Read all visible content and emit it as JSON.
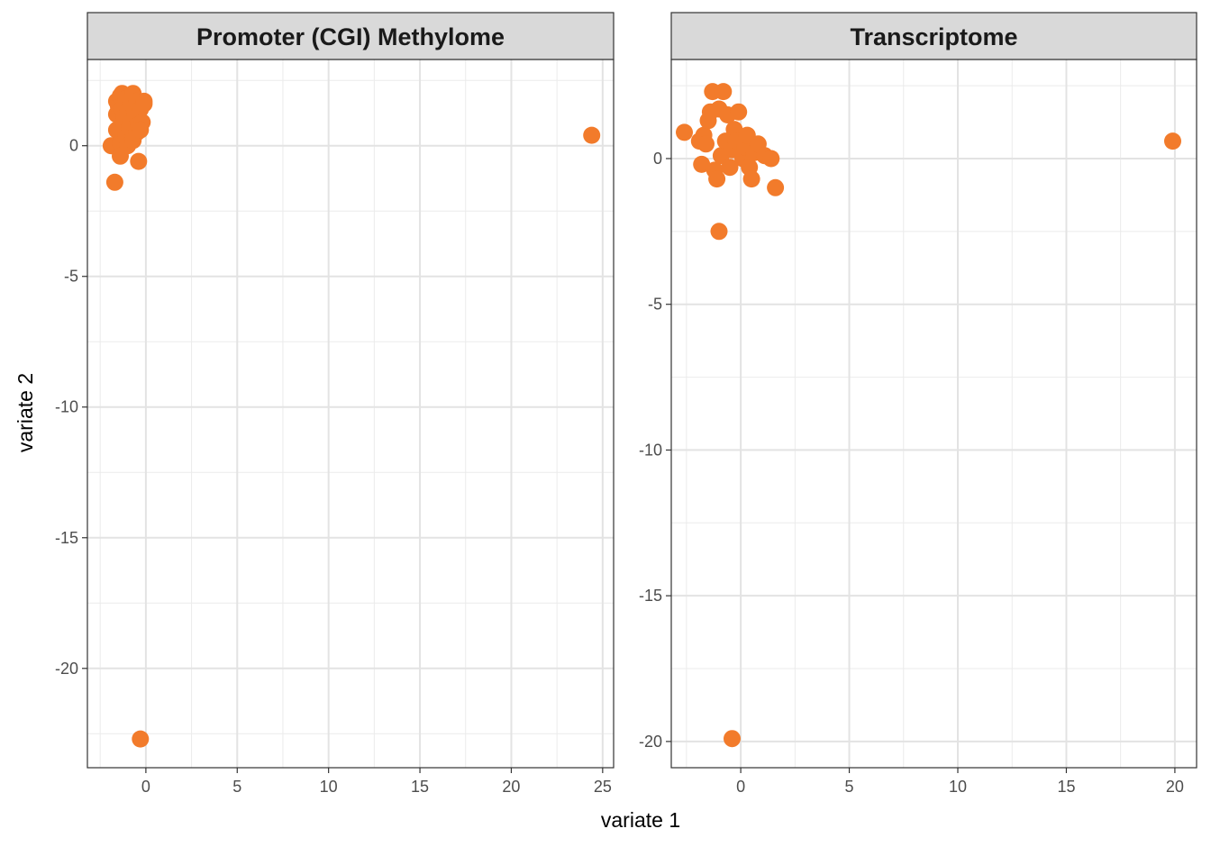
{
  "chart_data": {
    "type": "scatter",
    "xlabel": "variate 1",
    "ylabel": "variate 2",
    "point_color": "#F27B2B",
    "grid": true,
    "legend": "none",
    "panels": [
      {
        "title": "Promoter (CGI) Methylome",
        "xlim": [
          -3.2,
          25.6
        ],
        "ylim": [
          -23.8,
          3.3
        ],
        "xticks": [
          0,
          5,
          10,
          15,
          20,
          25
        ],
        "xtick_labels": [
          "0",
          "5",
          "10",
          "15",
          "20",
          "25"
        ],
        "yticks": [
          0,
          -5,
          -10,
          -15,
          -20
        ],
        "ytick_labels": [
          "0",
          "-5",
          "-10",
          "-15",
          "-20"
        ],
        "points": [
          {
            "x": -1.9,
            "y": 0.0
          },
          {
            "x": -1.7,
            "y": -1.4
          },
          {
            "x": -1.6,
            "y": 0.6
          },
          {
            "x": -1.6,
            "y": 1.2
          },
          {
            "x": -1.6,
            "y": 1.7
          },
          {
            "x": -1.5,
            "y": 1.5
          },
          {
            "x": -1.4,
            "y": 1.9
          },
          {
            "x": -1.4,
            "y": 0.1
          },
          {
            "x": -1.4,
            "y": -0.4
          },
          {
            "x": -1.3,
            "y": 2.0
          },
          {
            "x": -1.3,
            "y": 1.4
          },
          {
            "x": -1.2,
            "y": 0.8
          },
          {
            "x": -1.2,
            "y": 1.1
          },
          {
            "x": -1.1,
            "y": 0.4
          },
          {
            "x": -1.1,
            "y": 1.8
          },
          {
            "x": -1.0,
            "y": 0.0
          },
          {
            "x": -1.0,
            "y": 1.3
          },
          {
            "x": -0.9,
            "y": 0.7
          },
          {
            "x": -0.8,
            "y": 1.6
          },
          {
            "x": -0.8,
            "y": 0.9
          },
          {
            "x": -0.7,
            "y": 2.0
          },
          {
            "x": -0.7,
            "y": 0.2
          },
          {
            "x": -0.6,
            "y": 1.2
          },
          {
            "x": -0.5,
            "y": 1.7
          },
          {
            "x": -0.5,
            "y": 0.5
          },
          {
            "x": -0.4,
            "y": -0.6
          },
          {
            "x": -0.4,
            "y": 0.8
          },
          {
            "x": -0.3,
            "y": 1.4
          },
          {
            "x": -0.2,
            "y": 0.9
          },
          {
            "x": -0.1,
            "y": 1.7
          },
          {
            "x": -0.1,
            "y": 1.6
          },
          {
            "x": -0.3,
            "y": 0.6
          },
          {
            "x": 24.4,
            "y": 0.4
          },
          {
            "x": -0.3,
            "y": -22.7
          }
        ]
      },
      {
        "title": "Transcriptome",
        "xlim": [
          -3.2,
          21.0
        ],
        "ylim": [
          -20.9,
          3.4
        ],
        "xticks": [
          0,
          5,
          10,
          15,
          20
        ],
        "xtick_labels": [
          "0",
          "5",
          "10",
          "15",
          "20"
        ],
        "yticks": [
          0,
          -5,
          -10,
          -15,
          -20
        ],
        "ytick_labels": [
          "0",
          "-5",
          "-10",
          "-15",
          "-20"
        ],
        "points": [
          {
            "x": -2.6,
            "y": 0.9
          },
          {
            "x": -1.9,
            "y": 0.6
          },
          {
            "x": -1.8,
            "y": -0.2
          },
          {
            "x": -1.7,
            "y": 0.8
          },
          {
            "x": -1.6,
            "y": 0.5
          },
          {
            "x": -1.5,
            "y": 1.3
          },
          {
            "x": -1.4,
            "y": 1.6
          },
          {
            "x": -1.3,
            "y": 2.3
          },
          {
            "x": -1.2,
            "y": -0.4
          },
          {
            "x": -1.1,
            "y": -0.7
          },
          {
            "x": -1.0,
            "y": 1.7
          },
          {
            "x": -1.0,
            "y": -2.5
          },
          {
            "x": -0.9,
            "y": 0.1
          },
          {
            "x": -0.8,
            "y": 2.3
          },
          {
            "x": -0.7,
            "y": 0.6
          },
          {
            "x": -0.6,
            "y": 1.5
          },
          {
            "x": -0.5,
            "y": -0.3
          },
          {
            "x": -0.4,
            "y": 0.3
          },
          {
            "x": -0.3,
            "y": 1.0
          },
          {
            "x": -0.2,
            "y": 0.6
          },
          {
            "x": -0.1,
            "y": 1.6
          },
          {
            "x": 0.1,
            "y": 0.0
          },
          {
            "x": 0.2,
            "y": 0.4
          },
          {
            "x": 0.3,
            "y": 0.8
          },
          {
            "x": 0.4,
            "y": -0.3
          },
          {
            "x": 0.5,
            "y": -0.7
          },
          {
            "x": 0.6,
            "y": 0.2
          },
          {
            "x": 0.8,
            "y": 0.5
          },
          {
            "x": 1.1,
            "y": 0.1
          },
          {
            "x": 1.4,
            "y": 0.0
          },
          {
            "x": 1.6,
            "y": -1.0
          },
          {
            "x": 19.9,
            "y": 0.6
          },
          {
            "x": -0.4,
            "y": -19.9
          }
        ]
      }
    ]
  }
}
